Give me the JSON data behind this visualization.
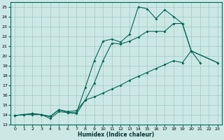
{
  "xlabel": "Humidex (Indice chaleur)",
  "bg_color": "#cce8e4",
  "grid_color": "#a0c8c4",
  "line_color": "#006655",
  "xlim_min": -0.5,
  "xlim_max": 23.5,
  "ylim_min": 13,
  "ylim_max": 25.5,
  "xticks": [
    0,
    1,
    2,
    3,
    4,
    5,
    6,
    7,
    8,
    9,
    10,
    11,
    12,
    13,
    14,
    15,
    16,
    17,
    18,
    19,
    20,
    21,
    22,
    23
  ],
  "yticks": [
    13,
    14,
    15,
    16,
    17,
    18,
    19,
    20,
    21,
    22,
    23,
    24,
    25
  ],
  "line1_x": [
    0,
    1,
    2,
    3,
    4,
    5,
    6,
    7,
    8,
    9,
    10,
    11,
    12,
    13,
    14,
    15,
    16,
    17,
    18,
    19,
    20,
    21
  ],
  "line1_y": [
    13.9,
    14.0,
    14.0,
    14.0,
    13.8,
    14.5,
    14.2,
    14.2,
    16.8,
    19.5,
    21.5,
    21.7,
    21.4,
    22.2,
    25.0,
    24.8,
    23.8,
    24.7,
    24.0,
    23.3,
    20.5,
    19.3
  ],
  "line2_x": [
    0,
    1,
    2,
    3,
    4,
    5,
    6,
    7,
    8,
    9,
    10,
    11,
    12,
    13,
    14,
    15,
    16,
    17,
    18,
    19,
    20,
    23
  ],
  "line2_y": [
    13.9,
    14.0,
    14.1,
    14.0,
    13.6,
    14.3,
    14.2,
    14.1,
    15.5,
    17.2,
    19.5,
    21.3,
    21.2,
    21.5,
    21.9,
    22.5,
    22.5,
    22.5,
    23.3,
    23.3,
    20.5,
    19.3
  ],
  "line3_x": [
    0,
    1,
    2,
    3,
    4,
    5,
    6,
    7,
    8,
    9,
    10,
    11,
    12,
    13,
    14,
    15,
    16,
    17,
    18,
    19,
    20,
    23
  ],
  "line3_y": [
    13.9,
    14.0,
    14.1,
    14.0,
    13.8,
    14.5,
    14.3,
    14.4,
    15.5,
    15.8,
    16.2,
    16.6,
    17.0,
    17.5,
    17.9,
    18.3,
    18.7,
    19.1,
    19.5,
    19.3,
    20.5,
    19.3
  ]
}
